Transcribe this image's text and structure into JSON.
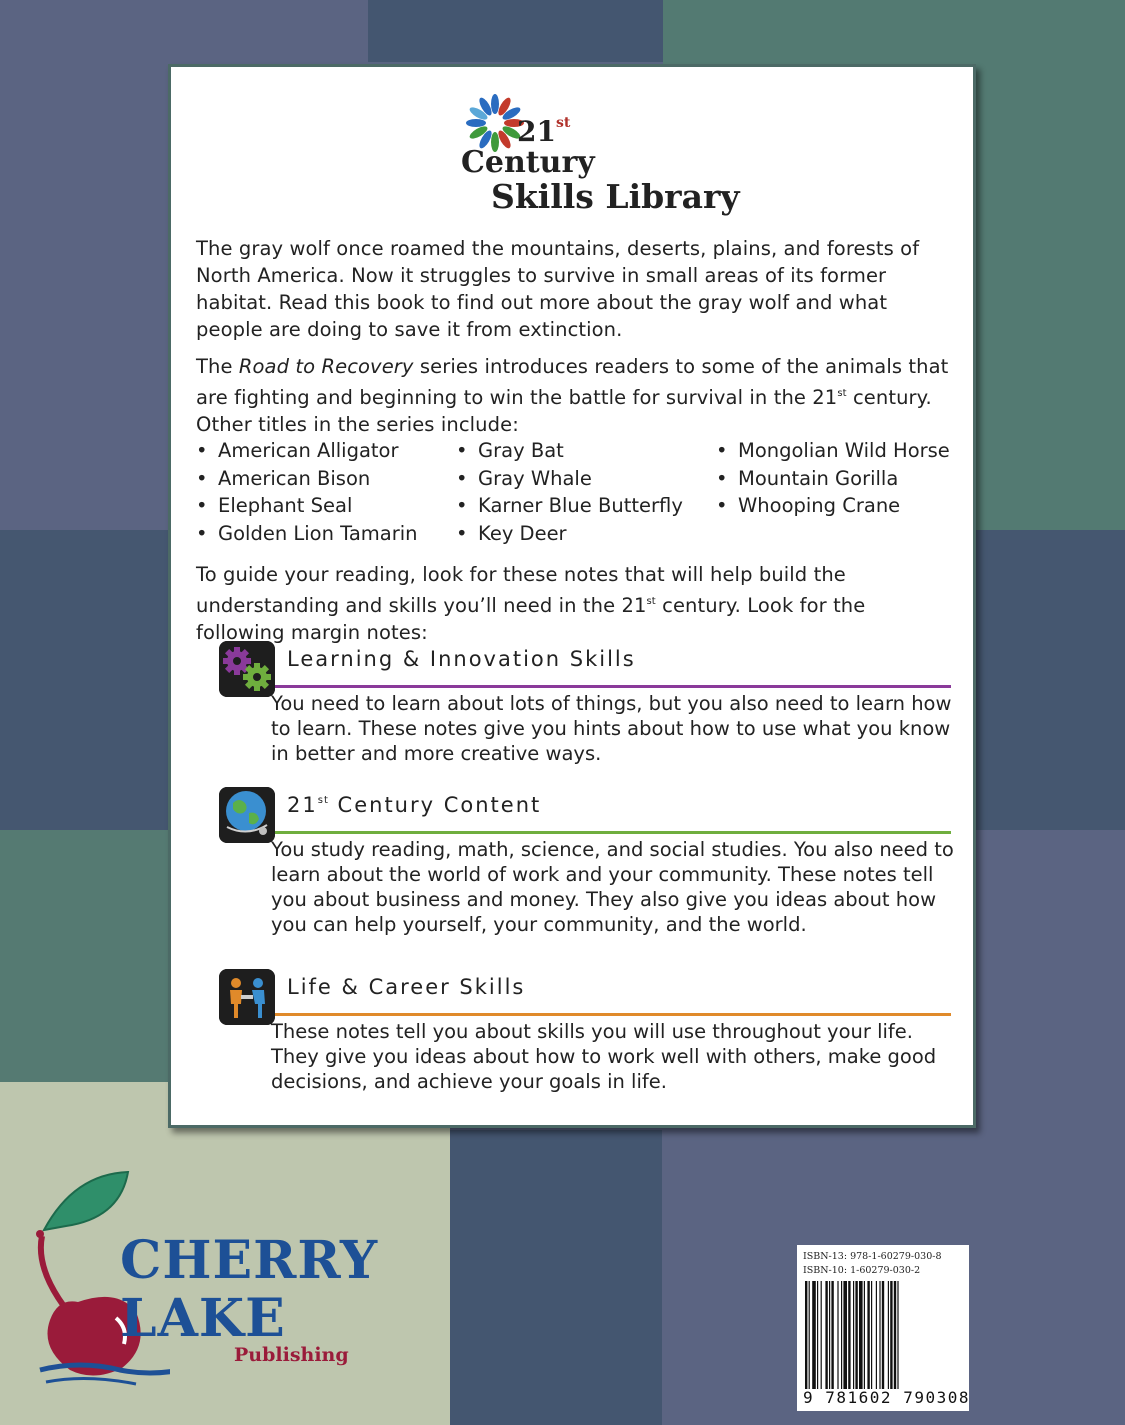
{
  "logo": {
    "line1_num": "21",
    "line1_sup": "st",
    "line2": "Century",
    "line3": "Skills Library"
  },
  "intro": "The gray wolf once roamed the mountains, deserts, plains, and forests of North America. Now it struggles to survive in small areas of its former habitat. Read this book to find out more about the gray wolf and what people are doing to save it from extinction.",
  "series": {
    "prefix": "The ",
    "title": "Road to Recovery",
    "text_a": " series introduces readers to some of the animals that are fighting and beginning to win the battle for survival in the 21",
    "sup": "st",
    "text_b": " century. Other titles in the series include:"
  },
  "titles": {
    "col1": [
      "American Alligator",
      "American Bison",
      "Elephant Seal",
      "Golden Lion Tamarin"
    ],
    "col2": [
      "Gray Bat",
      "Gray Whale",
      "Karner Blue Butterfly",
      "Key Deer"
    ],
    "col3": [
      "Mongolian Wild Horse",
      "Mountain Gorilla",
      "Whooping Crane"
    ]
  },
  "guide": {
    "text_a": "To guide your reading, look for these notes that will help build the understanding and skills you’ll need in the 21",
    "sup": "st",
    "text_b": " century. Look for the following margin notes:"
  },
  "notes": [
    {
      "heading": "Learning & Innovation Skills",
      "icon": "gears-icon",
      "color": "#8a3a9a",
      "body": "You need to learn about lots of things, but you also need to learn how to learn. These notes give you hints about how to use what you know in better and more creative ways."
    },
    {
      "heading_num": "21",
      "heading_sup": "st",
      "heading_rest": " Century Content",
      "icon": "globe-icon",
      "color": "#6fae3e",
      "body": "You study reading, math, science, and social studies. You also need to learn about the world of work and your community. These notes tell you about business and money. They also give you ideas about how you can help yourself, your community, and the world."
    },
    {
      "heading": "Life & Career Skills",
      "icon": "people-handshake-icon",
      "color": "#e08a2a",
      "body": "These notes tell you about skills you will use throughout your life. They give you ideas about how to work well with others, make good decisions, and achieve your goals in life."
    }
  ],
  "publisher": {
    "word1": "CHERRY",
    "word2": "LAKE",
    "word3": "Publishing",
    "icon": "cherry-icon"
  },
  "barcode": {
    "isbn13": "ISBN-13: 978-1-60279-030-8",
    "isbn10": "ISBN-10: 1-60279-030-2",
    "digits": "9 781602 790308"
  },
  "colors": {
    "panel_border": "#4c6a66",
    "publisher_blue": "#1d5096",
    "publisher_red": "#9a1b3a"
  }
}
